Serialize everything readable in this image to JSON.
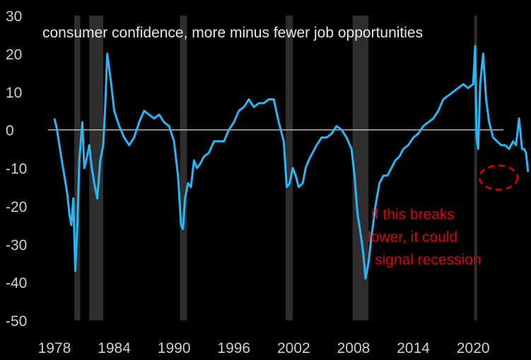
{
  "chart_data": {
    "type": "line",
    "title": "consumer confidence, more minus fewer job opportunities",
    "xlabel": "",
    "ylabel": "",
    "xlim": [
      1976.8,
      2025.8
    ],
    "ylim": [
      -50,
      30
    ],
    "x_ticks": [
      "1978",
      "1984",
      "1990",
      "1996",
      "2002",
      "2008",
      "2014",
      "2020"
    ],
    "y_ticks": [
      "30",
      "20",
      "10",
      "0",
      "-10",
      "-20",
      "-30",
      "-40",
      "-50"
    ],
    "grid": false,
    "legend": "none",
    "colors": {
      "line": "#29b6f6",
      "zero_line": "#bdbdbd",
      "recession": "#2e2e2e",
      "annotation": "#e00000"
    },
    "recessions": [
      [
        1980.0,
        1980.6
      ],
      [
        1981.5,
        1982.9
      ],
      [
        1990.6,
        1991.3
      ],
      [
        2001.2,
        2001.9
      ],
      [
        2007.9,
        2009.5
      ],
      [
        2020.1,
        2020.4
      ]
    ],
    "series": [
      {
        "x": [
          1978.0,
          1978.2,
          1978.5,
          1978.8,
          1979.0,
          1979.3,
          1979.5,
          1979.7,
          1979.9,
          1980.1,
          1980.3,
          1980.5,
          1980.8,
          1981.0,
          1981.2,
          1981.5,
          1981.7,
          1982.0,
          1982.3,
          1982.6,
          1982.9,
          1983.1,
          1983.3,
          1983.5,
          1983.7,
          1984.0,
          1984.5,
          1985.0,
          1985.5,
          1986.0,
          1986.5,
          1987.0,
          1987.5,
          1988.0,
          1988.5,
          1989.0,
          1989.5,
          1990.0,
          1990.4,
          1990.7,
          1990.9,
          1991.1,
          1991.4,
          1991.7,
          1992.0,
          1992.3,
          1992.6,
          1993.0,
          1993.5,
          1994.0,
          1994.5,
          1995.0,
          1995.5,
          1996.0,
          1996.5,
          1997.0,
          1997.5,
          1998.0,
          1998.5,
          1999.0,
          1999.5,
          2000.0,
          2000.5,
          2001.0,
          2001.3,
          2001.6,
          2001.9,
          2002.2,
          2002.5,
          2002.9,
          2003.2,
          2003.5,
          2003.9,
          2004.3,
          2004.8,
          2005.3,
          2005.8,
          2006.3,
          2006.8,
          2007.3,
          2007.8,
          2008.1,
          2008.4,
          2008.7,
          2009.0,
          2009.2,
          2009.5,
          2009.8,
          2010.2,
          2010.6,
          2011.0,
          2011.4,
          2011.8,
          2012.2,
          2012.6,
          2013.0,
          2013.5,
          2014.0,
          2014.5,
          2015.0,
          2015.5,
          2016.0,
          2016.5,
          2017.0,
          2017.5,
          2018.0,
          2018.5,
          2019.0,
          2019.5,
          2020.0,
          2020.2,
          2020.35,
          2020.5,
          2020.7,
          2021.0,
          2021.3,
          2021.6,
          2022.0,
          2022.4,
          2022.8,
          2023.2,
          2023.6,
          2024.0,
          2024.3,
          2024.6,
          2024.9,
          2025.1,
          2025.3,
          2025.5
        ],
        "values": [
          3,
          1,
          -4,
          -9,
          -12,
          -17,
          -22,
          -25,
          -18,
          -37,
          -25,
          -8,
          2,
          -10,
          -8,
          -4,
          -9,
          -14,
          -18,
          -8,
          -4,
          6,
          20,
          16,
          12,
          5,
          1,
          -2,
          -4,
          -2,
          2,
          5,
          4,
          3,
          4,
          2,
          1,
          -3,
          -12,
          -25,
          -26,
          -18,
          -14,
          -15,
          -8,
          -10,
          -9,
          -7,
          -6,
          -3,
          -3,
          -3,
          0,
          2,
          5,
          6,
          8,
          6,
          7,
          7,
          8,
          8,
          2,
          -3,
          -15,
          -14,
          -10,
          -12,
          -15,
          -14,
          -10,
          -8,
          -6,
          -4,
          -2,
          -2,
          -1,
          1,
          0,
          -2,
          -5,
          -12,
          -22,
          -27,
          -33,
          -39,
          -35,
          -28,
          -20,
          -14,
          -12,
          -12,
          -10,
          -8,
          -7,
          -5,
          -4,
          -2,
          -1,
          1,
          2,
          3,
          5,
          8,
          9,
          10,
          11,
          12,
          11,
          12,
          22,
          -2,
          -5,
          12,
          20,
          8,
          2,
          -2,
          -3,
          -4,
          -4,
          -5,
          -3,
          -4,
          3,
          -5,
          -5,
          -6,
          -11
        ]
      }
    ],
    "annotations": [
      "if this breaks",
      "lower, it could",
      "signal recession"
    ]
  }
}
